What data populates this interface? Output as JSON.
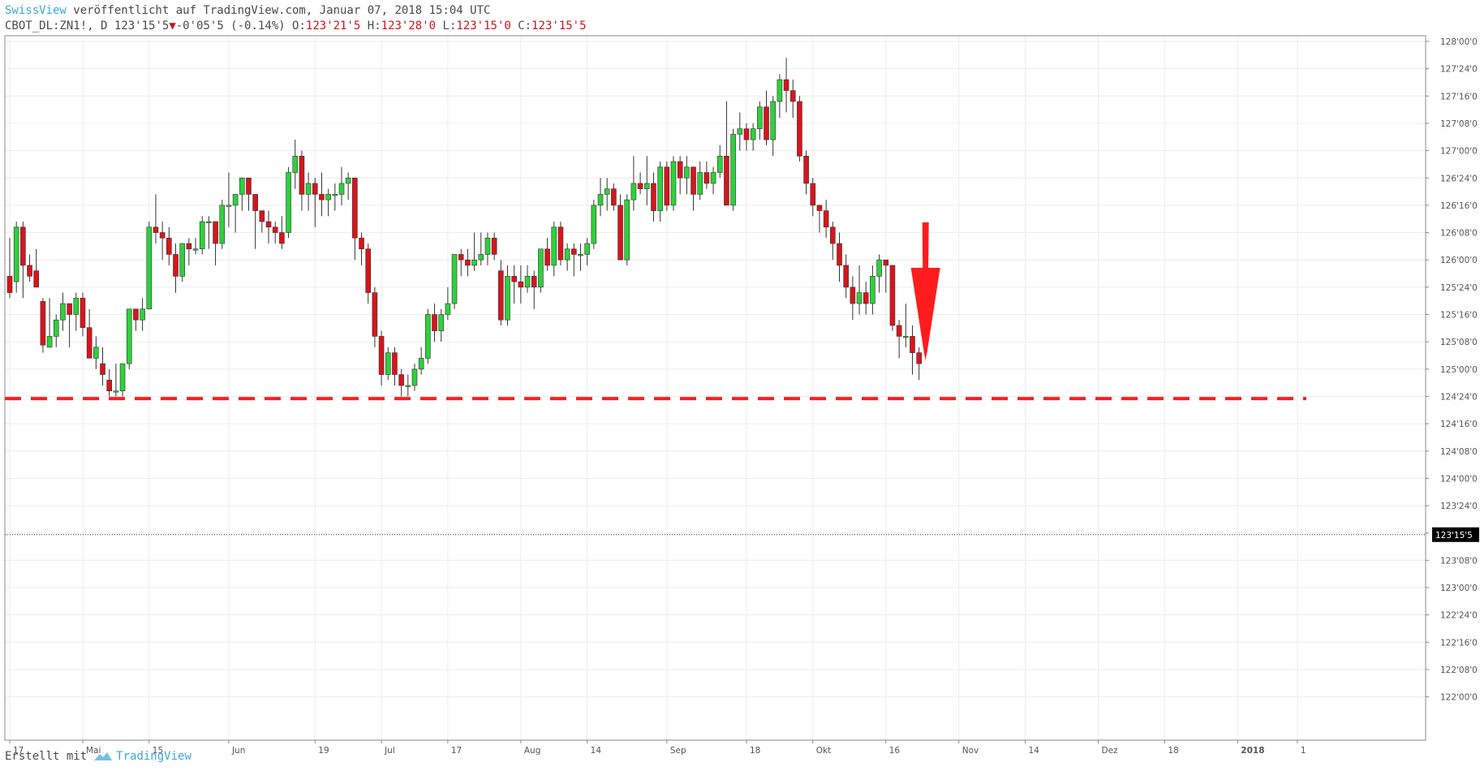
{
  "header": {
    "publisher": "SwissView",
    "published_text": " veröffentlicht auf TradingView.com, Januar 07, 2018 15:04 UTC",
    "symbol": "CBOT_DL:ZN1!, D",
    "last": "123'15'5",
    "change": "-0'05'5 (-0.14%)",
    "o_label": "O:",
    "o_value": "123'21'5",
    "h_label": "H:",
    "h_value": "123'28'0",
    "l_label": "L:",
    "l_value": "123'15'0",
    "c_label": "C:",
    "c_value": "123'15'5"
  },
  "footer": {
    "created_with": "Erstellt mit",
    "brand": "TradingView"
  },
  "colors": {
    "up": "#2ed13b",
    "down": "#d9141c",
    "annotation": "#ff1c1c",
    "publisher": "#3ba6d8"
  },
  "chart_data": {
    "type": "candlestick",
    "title": "CBOT_DL:ZN1!, D",
    "y_axis": {
      "ticks": [
        128.0,
        127.75,
        127.5,
        127.25,
        127.0,
        126.75,
        126.5,
        126.25,
        126.0,
        125.75,
        125.5,
        125.25,
        125.0,
        124.75,
        124.5,
        124.25,
        124.0,
        123.75,
        123.5,
        123.25,
        123.0,
        122.75,
        122.5,
        122.25,
        122.0
      ],
      "tick_labels": [
        "128'00'0",
        "127'24'0",
        "127'16'0",
        "127'08'0",
        "127'00'0",
        "126'24'0",
        "126'16'0",
        "126'08'0",
        "126'00'0",
        "125'24'0",
        "125'16'0",
        "125'08'0",
        "125'00'0",
        "124'24'0",
        "124'16'0",
        "124'08'0",
        "124'00'0",
        "123'24'0",
        "123'16'0",
        "123'08'0",
        "123'00'0",
        "122'24'0",
        "122'16'0",
        "122'08'0",
        "122'00'0"
      ],
      "range": [
        121.9,
        128.1
      ],
      "position": "right"
    },
    "x_axis": {
      "tick_labels": [
        "17",
        "Mai",
        "15",
        "Jun",
        "19",
        "Jul",
        "17",
        "Aug",
        "14",
        "Sep",
        "18",
        "Okt",
        "16",
        "Nov",
        "14",
        "Dez",
        "18",
        "2018",
        "1"
      ],
      "tick_bar_index": [
        0,
        11,
        21,
        33,
        46,
        56,
        66,
        77,
        87,
        99,
        111,
        121,
        132,
        143,
        153,
        164,
        174,
        185,
        194
      ]
    },
    "last_price": {
      "value": 123.4844,
      "label": "123'15'5"
    },
    "support_line": {
      "value": 124.73,
      "style": "dashed",
      "color": "#ff1c1c"
    },
    "annotation": {
      "type": "down-arrow",
      "bar_index": 137
    },
    "candles": [
      [
        125.85,
        126.2,
        125.65,
        125.85,
        125.7
      ],
      [
        125.8,
        126.35,
        125.7,
        125.9,
        126.3
      ],
      [
        126.3,
        126.35,
        125.65,
        125.85,
        125.95
      ],
      [
        125.95,
        126.05,
        125.8,
        125.95,
        125.85
      ],
      [
        125.9,
        126.1,
        125.8,
        125.85,
        125.75
      ],
      [
        125.62,
        125.65,
        125.15,
        125.2,
        125.22
      ],
      [
        125.2,
        125.65,
        125.2,
        125.6,
        125.3
      ],
      [
        125.3,
        125.5,
        125.2,
        125.35,
        125.45
      ],
      [
        125.45,
        125.7,
        125.35,
        125.55,
        125.6
      ],
      [
        125.6,
        125.6,
        125.2,
        125.35,
        125.5
      ],
      [
        125.5,
        125.7,
        125.35,
        125.45,
        125.65
      ],
      [
        125.65,
        125.7,
        125.3,
        125.4,
        125.38
      ],
      [
        125.38,
        125.55,
        125.15,
        125.2,
        125.1
      ],
      [
        125.1,
        125.3,
        125.0,
        125.15,
        125.2
      ],
      [
        125.05,
        125.2,
        124.85,
        124.95,
        124.95
      ],
      [
        124.9,
        125.0,
        124.75,
        124.85,
        124.8
      ],
      [
        124.8,
        125.05,
        124.75,
        124.85,
        124.8
      ],
      [
        124.8,
        125.05,
        124.75,
        125.0,
        125.05
      ],
      [
        125.05,
        125.55,
        125.0,
        125.35,
        125.55
      ],
      [
        125.55,
        125.55,
        125.35,
        125.45,
        125.45
      ],
      [
        125.45,
        125.65,
        125.35,
        125.45,
        125.55
      ],
      [
        125.55,
        126.35,
        125.55,
        125.85,
        126.3
      ],
      [
        126.3,
        126.6,
        126.15,
        126.35,
        126.25
      ],
      [
        126.25,
        126.35,
        126.0,
        126.05,
        126.2
      ],
      [
        126.2,
        126.3,
        125.95,
        126.05,
        126.05
      ],
      [
        126.05,
        126.15,
        125.7,
        125.8,
        125.85
      ],
      [
        125.85,
        126.15,
        125.8,
        125.95,
        126.15
      ],
      [
        126.15,
        126.2,
        125.95,
        126.05,
        126.1
      ],
      [
        126.1,
        126.2,
        126.05,
        126.1,
        126.1
      ],
      [
        126.1,
        126.4,
        126.05,
        126.25,
        126.35
      ],
      [
        126.35,
        126.4,
        126.1,
        126.25,
        126.35
      ],
      [
        126.35,
        126.35,
        125.95,
        126.15,
        126.15
      ],
      [
        126.15,
        126.55,
        126.1,
        126.25,
        126.5
      ],
      [
        126.5,
        126.8,
        126.3,
        126.5,
        126.5
      ],
      [
        126.5,
        126.55,
        126.25,
        126.4,
        126.6
      ],
      [
        126.6,
        126.75,
        126.45,
        126.75,
        126.75
      ],
      [
        126.75,
        126.75,
        126.45,
        126.5,
        126.6
      ],
      [
        126.6,
        126.6,
        126.1,
        126.3,
        126.45
      ],
      [
        126.45,
        126.45,
        126.25,
        126.3,
        126.35
      ],
      [
        126.35,
        126.45,
        126.15,
        126.25,
        126.3
      ],
      [
        126.3,
        126.35,
        126.15,
        126.25,
        126.25
      ],
      [
        126.25,
        126.4,
        126.1,
        126.15,
        126.15
      ],
      [
        126.25,
        126.85,
        126.2,
        126.7,
        126.8
      ],
      [
        126.8,
        127.1,
        126.65,
        126.95,
        126.95
      ],
      [
        126.95,
        127.0,
        126.45,
        126.5,
        126.6
      ],
      [
        126.6,
        126.8,
        126.45,
        126.55,
        126.7
      ],
      [
        126.7,
        126.75,
        126.3,
        126.5,
        126.6
      ],
      [
        126.6,
        126.8,
        126.4,
        126.6,
        126.55
      ],
      [
        126.55,
        126.65,
        126.4,
        126.5,
        126.6
      ],
      [
        126.6,
        126.7,
        126.45,
        126.55,
        126.6
      ],
      [
        126.6,
        126.85,
        126.5,
        126.7,
        126.7
      ],
      [
        126.7,
        126.8,
        126.55,
        126.65,
        126.75
      ],
      [
        126.75,
        126.75,
        126.0,
        126.1,
        126.2
      ],
      [
        126.2,
        126.25,
        125.95,
        126.05,
        126.1
      ],
      [
        126.1,
        126.15,
        125.6,
        125.7,
        125.7
      ],
      [
        125.7,
        125.75,
        125.2,
        125.3,
        125.3
      ],
      [
        125.3,
        125.35,
        124.85,
        124.95,
        124.95
      ],
      [
        124.95,
        125.2,
        124.9,
        125.1,
        125.15
      ],
      [
        125.15,
        125.2,
        124.85,
        124.95,
        124.95
      ],
      [
        124.95,
        125.0,
        124.75,
        124.85,
        124.85
      ],
      [
        124.85,
        124.95,
        124.75,
        124.85,
        124.85
      ],
      [
        124.85,
        125.05,
        124.8,
        124.95,
        125.0
      ],
      [
        125.0,
        125.2,
        124.95,
        125.05,
        125.1
      ],
      [
        125.1,
        125.55,
        125.05,
        125.25,
        125.5
      ],
      [
        125.5,
        125.6,
        125.25,
        125.4,
        125.35
      ],
      [
        125.35,
        125.55,
        125.25,
        125.4,
        125.5
      ],
      [
        125.5,
        125.75,
        125.45,
        125.6,
        125.6
      ],
      [
        125.6,
        126.05,
        125.55,
        125.85,
        126.05
      ],
      [
        126.05,
        126.1,
        125.85,
        125.95,
        126.0
      ],
      [
        126.0,
        126.1,
        125.85,
        126.0,
        125.95
      ],
      [
        125.95,
        126.25,
        125.9,
        126.05,
        126.0
      ],
      [
        126.0,
        126.25,
        125.95,
        126.1,
        126.05
      ],
      [
        126.05,
        126.25,
        125.95,
        126.15,
        126.2
      ],
      [
        126.2,
        126.25,
        126.0,
        126.1,
        126.05
      ],
      [
        125.9,
        126.0,
        125.4,
        125.65,
        125.45
      ],
      [
        125.45,
        125.95,
        125.4,
        125.7,
        125.85
      ],
      [
        125.85,
        125.95,
        125.6,
        125.75,
        125.8
      ],
      [
        125.8,
        125.95,
        125.6,
        125.75,
        125.75
      ],
      [
        125.75,
        125.95,
        125.7,
        125.8,
        125.85
      ],
      [
        125.85,
        125.9,
        125.55,
        125.75,
        125.75
      ],
      [
        125.75,
        126.1,
        125.7,
        125.9,
        126.1
      ],
      [
        126.1,
        126.2,
        125.9,
        126.05,
        125.95
      ],
      [
        125.95,
        126.35,
        125.85,
        126.15,
        126.3
      ],
      [
        126.3,
        126.35,
        125.95,
        126.05,
        126.0
      ],
      [
        126.0,
        126.15,
        125.9,
        126.05,
        126.1
      ],
      [
        126.1,
        126.15,
        125.85,
        126.0,
        126.05
      ],
      [
        126.05,
        126.15,
        125.9,
        126.05,
        126.05
      ],
      [
        126.05,
        126.2,
        125.95,
        126.1,
        126.15
      ],
      [
        126.15,
        126.55,
        126.1,
        126.35,
        126.5
      ],
      [
        126.5,
        126.75,
        126.4,
        126.6,
        126.6
      ],
      [
        126.6,
        126.75,
        126.45,
        126.6,
        126.65
      ],
      [
        126.65,
        126.7,
        126.45,
        126.55,
        126.5
      ],
      [
        126.5,
        126.6,
        126.0,
        126.05,
        126.0
      ],
      [
        126.0,
        126.6,
        125.95,
        126.3,
        126.55
      ],
      [
        126.55,
        126.95,
        126.45,
        126.75,
        126.7
      ],
      [
        126.7,
        126.8,
        126.6,
        126.65,
        126.65
      ],
      [
        126.65,
        126.95,
        126.5,
        126.75,
        126.7
      ],
      [
        126.7,
        126.8,
        126.35,
        126.5,
        126.45
      ],
      [
        126.45,
        126.9,
        126.35,
        126.7,
        126.85
      ],
      [
        126.85,
        126.9,
        126.45,
        126.6,
        126.5
      ],
      [
        126.5,
        126.95,
        126.45,
        126.75,
        126.9
      ],
      [
        126.9,
        126.95,
        126.6,
        126.75,
        126.75
      ],
      [
        126.75,
        126.95,
        126.6,
        126.8,
        126.85
      ],
      [
        126.85,
        126.85,
        126.45,
        126.6,
        126.6
      ],
      [
        126.6,
        126.9,
        126.55,
        126.8,
        126.8
      ],
      [
        126.8,
        126.9,
        126.65,
        126.75,
        126.7
      ],
      [
        126.7,
        126.85,
        126.6,
        126.75,
        126.8
      ],
      [
        126.8,
        127.05,
        126.75,
        126.9,
        126.95
      ],
      [
        126.95,
        127.45,
        126.5,
        127.0,
        126.5
      ],
      [
        126.5,
        127.2,
        126.45,
        127.0,
        127.15
      ],
      [
        127.15,
        127.35,
        127.0,
        127.15,
        127.2
      ],
      [
        127.2,
        127.25,
        127.0,
        127.15,
        127.1
      ],
      [
        127.1,
        127.25,
        127.0,
        127.15,
        127.2
      ],
      [
        127.2,
        127.45,
        127.1,
        127.3,
        127.4
      ],
      [
        127.4,
        127.55,
        127.05,
        127.25,
        127.1
      ],
      [
        127.1,
        127.5,
        126.95,
        127.25,
        127.45
      ],
      [
        127.45,
        127.7,
        127.3,
        127.5,
        127.65
      ],
      [
        127.65,
        127.85,
        127.35,
        127.6,
        127.55
      ],
      [
        127.55,
        127.65,
        127.3,
        127.4,
        127.45
      ],
      [
        127.45,
        127.5,
        126.9,
        127.05,
        126.95
      ],
      [
        126.95,
        127.0,
        126.6,
        126.7,
        126.7
      ],
      [
        126.7,
        126.75,
        126.4,
        126.5,
        126.5
      ],
      [
        126.5,
        126.5,
        126.25,
        126.4,
        126.45
      ],
      [
        126.45,
        126.55,
        126.2,
        126.35,
        126.3
      ],
      [
        126.3,
        126.35,
        126.0,
        126.15,
        126.15
      ],
      [
        126.15,
        126.25,
        125.8,
        125.95,
        125.95
      ],
      [
        125.95,
        126.05,
        125.65,
        125.75,
        125.75
      ],
      [
        125.75,
        125.85,
        125.45,
        125.6,
        125.6
      ],
      [
        125.6,
        125.95,
        125.5,
        125.7,
        125.7
      ],
      [
        125.7,
        125.8,
        125.5,
        125.65,
        125.6
      ],
      [
        125.6,
        125.95,
        125.5,
        125.8,
        125.85
      ],
      [
        125.85,
        126.05,
        125.7,
        125.9,
        126.0
      ],
      [
        126.0,
        126.0,
        125.7,
        125.9,
        125.95
      ],
      [
        125.95,
        125.95,
        125.35,
        125.5,
        125.4
      ],
      [
        125.4,
        125.45,
        125.1,
        125.3,
        125.3
      ],
      [
        125.3,
        125.6,
        125.2,
        125.4,
        125.3
      ],
      [
        125.3,
        125.4,
        124.95,
        125.15,
        125.15
      ],
      [
        125.15,
        125.2,
        124.9,
        125.05,
        125.05
      ]
    ]
  }
}
